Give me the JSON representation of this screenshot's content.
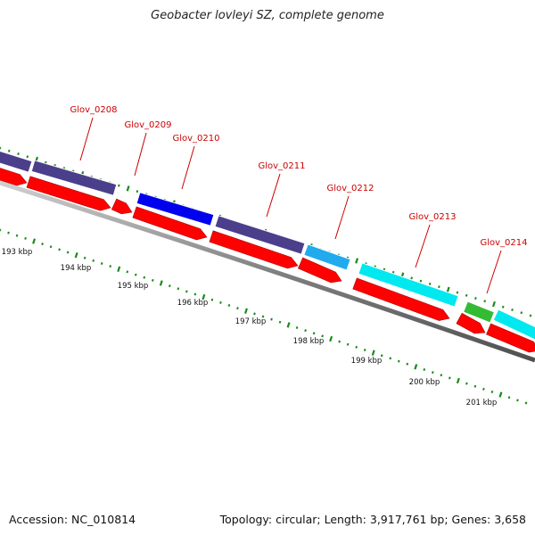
{
  "title": "Geobacter lovleyi SZ, complete genome",
  "footer": {
    "accession": "Accession: NC_010814",
    "summary": "Topology: circular; Length: 3,917,761 bp; Genes: 3,658"
  },
  "colors": {
    "gene_label": "#cc0000",
    "cds_arrow": "#ff0000",
    "backbone": "#808080",
    "ticks": "#1a8a1a",
    "cog_dark_purple": "#4b3f8c",
    "cog_blue": "#0000ee",
    "cog_light_blue": "#22aaee",
    "cog_cyan": "#00e8f0",
    "cog_green": "#33bb33"
  },
  "scale_labels": [
    "193 kbp",
    "194 kbp",
    "195 kbp",
    "196 kbp",
    "197 kbp",
    "198 kbp",
    "199 kbp",
    "200 kbp",
    "201 kbp"
  ],
  "genes": [
    {
      "label": "Glov_0208",
      "cog_color": "cog_dark_purple"
    },
    {
      "label": "Glov_0209",
      "cog_color": "none"
    },
    {
      "label": "Glov_0210",
      "cog_color": "cog_blue"
    },
    {
      "label": "Glov_0211",
      "cog_color": "cog_dark_purple"
    },
    {
      "label": "Glov_0212",
      "cog_color": "cog_light_blue"
    },
    {
      "label": "Glov_0213",
      "cog_color": "cog_cyan"
    },
    {
      "label": "Glov_0214",
      "cog_color": "cog_green"
    }
  ]
}
